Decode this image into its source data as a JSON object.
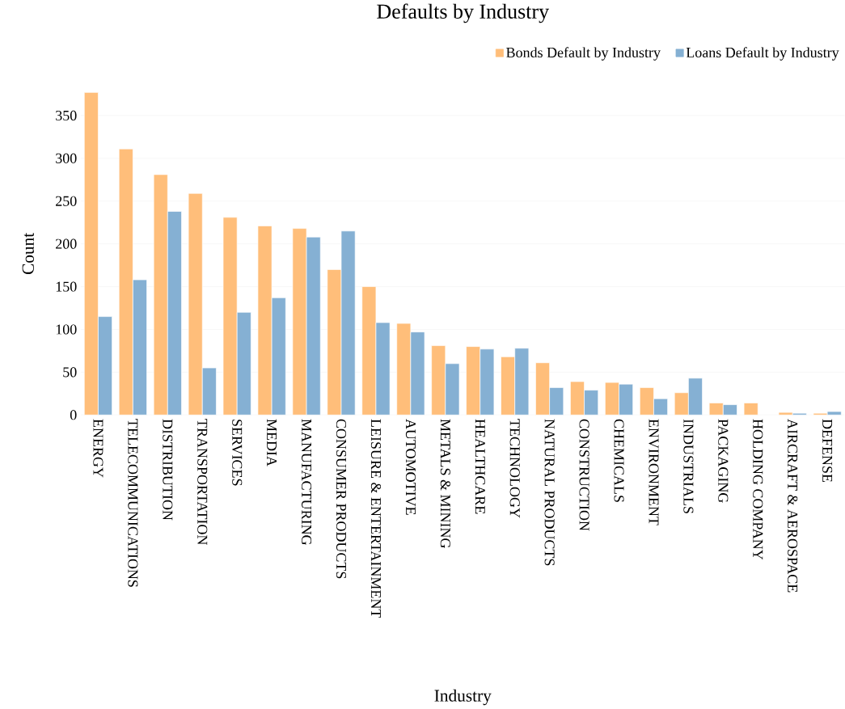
{
  "chart_data": {
    "type": "bar",
    "title": "Defaults by Industry",
    "xlabel": "Industry",
    "ylabel": "Count",
    "categories": [
      "ENERGY",
      "TELECOMMUNICATIONS",
      "DISTRIBUTION",
      "TRANSPORTATION",
      "SERVICES",
      "MEDIA",
      "MANUFACTURING",
      "CONSUMER PRODUCTS",
      "LEISURE & ENTERTAINMENT",
      "AUTOMOTIVE",
      "METALS & MINING",
      "HEALTHCARE",
      "TECHNOLOGY",
      "NATURAL PRODUCTS",
      "CONSTRUCTION",
      "CHEMICALS",
      "ENVIRONMENT",
      "INDUSTRIALS",
      "PACKAGING",
      "HOLDING COMPANY",
      "AIRCRAFT & AEROSPACE",
      "DEFENSE"
    ],
    "series": [
      {
        "name": "Bonds Default by Industry",
        "color": "#ffbe7a",
        "values": [
          377,
          311,
          281,
          259,
          231,
          221,
          218,
          170,
          150,
          107,
          81,
          80,
          68,
          61,
          39,
          38,
          32,
          26,
          14,
          14,
          3,
          2
        ]
      },
      {
        "name": "Loans Default by Industry",
        "color": "#85b0d3",
        "values": [
          115,
          158,
          238,
          55,
          120,
          137,
          208,
          215,
          108,
          97,
          60,
          77,
          78,
          32,
          29,
          36,
          19,
          43,
          12,
          null,
          2,
          4
        ]
      }
    ],
    "ylim": [
      0,
      377
    ],
    "yticks": [
      0,
      50,
      100,
      150,
      200,
      250,
      300,
      350
    ],
    "grid": "y",
    "legend": "top right"
  }
}
